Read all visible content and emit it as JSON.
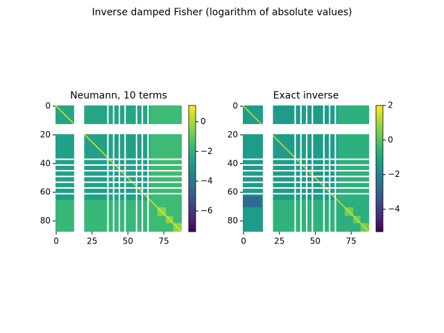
{
  "title": "Inverse damped Fisher (logarithm of absolute values)",
  "chart_data": [
    {
      "type": "heatmap",
      "title": "Neumann, 10 terms",
      "colormap": "viridis",
      "size": 88,
      "xlim": [
        -0.5,
        87.5
      ],
      "ylim": [
        87.5,
        -0.5
      ],
      "xticks": [
        0,
        25,
        50,
        75
      ],
      "yticks": [
        0,
        20,
        40,
        60,
        80
      ],
      "clim": [
        -7.4,
        1.1
      ],
      "cticks": [
        0,
        {
          "value": -2,
          "label": "−2"
        },
        {
          "value": -4,
          "label": "−4"
        },
        {
          "value": -6,
          "label": "−6"
        }
      ],
      "base": -2.6,
      "diagonal": 0.9,
      "blocks": [
        {
          "rows": [
            0,
            12
          ],
          "cols": [
            0,
            87
          ],
          "value": -2.4
        },
        {
          "rows": [
            66,
            87
          ],
          "cols": [
            0,
            87
          ],
          "value": -1.7
        },
        {
          "rows": [
            0,
            87
          ],
          "cols": [
            66,
            87
          ],
          "value": -1.6
        },
        {
          "rows": [
            71,
            76
          ],
          "cols": [
            71,
            76
          ],
          "value": -0.4
        },
        {
          "rows": [
            77,
            81
          ],
          "cols": [
            77,
            81
          ],
          "value": -0.4
        },
        {
          "rows": [
            82,
            87
          ],
          "cols": [
            82,
            87
          ],
          "value": -0.4
        }
      ],
      "nan_rows": [
        [
          13,
          19
        ],
        [
          37,
          37
        ],
        [
          41,
          41
        ],
        [
          45,
          45
        ],
        [
          49,
          49
        ],
        [
          53,
          53
        ],
        [
          57,
          57
        ],
        [
          61,
          61
        ]
      ],
      "nan_cols": [
        [
          13,
          19
        ],
        [
          36,
          36
        ],
        [
          40,
          40
        ],
        [
          44,
          44
        ],
        [
          48,
          48
        ],
        [
          56,
          56
        ],
        [
          60,
          60
        ],
        [
          64,
          64
        ]
      ]
    },
    {
      "type": "heatmap",
      "title": "Exact inverse",
      "colormap": "viridis",
      "size": 88,
      "xlim": [
        -0.5,
        87.5
      ],
      "ylim": [
        87.5,
        -0.5
      ],
      "xticks": [
        0,
        25,
        50,
        75
      ],
      "yticks": [
        0,
        20,
        40,
        60,
        80
      ],
      "clim": [
        -5.3,
        2
      ],
      "cticks": [
        2,
        0,
        {
          "value": -2,
          "label": "−2"
        },
        {
          "value": -4,
          "label": "−4"
        }
      ],
      "base": -1.3,
      "diagonal": 1.6,
      "blocks": [
        {
          "rows": [
            63,
            70
          ],
          "cols": [
            0,
            12
          ],
          "value": -2.8
        },
        {
          "rows": [
            66,
            87
          ],
          "cols": [
            14,
            87
          ],
          "value": -0.6
        },
        {
          "rows": [
            0,
            87
          ],
          "cols": [
            66,
            87
          ],
          "value": -0.7
        },
        {
          "rows": [
            71,
            76
          ],
          "cols": [
            71,
            76
          ],
          "value": 0.4
        },
        {
          "rows": [
            77,
            81
          ],
          "cols": [
            77,
            81
          ],
          "value": 0.4
        },
        {
          "rows": [
            82,
            87
          ],
          "cols": [
            82,
            87
          ],
          "value": 0.4
        }
      ],
      "nan_rows": [
        [
          13,
          19
        ],
        [
          37,
          37
        ],
        [
          41,
          41
        ],
        [
          45,
          45
        ],
        [
          49,
          49
        ],
        [
          53,
          53
        ],
        [
          57,
          57
        ],
        [
          61,
          61
        ]
      ],
      "nan_cols": [
        [
          14,
          20
        ],
        [
          36,
          36
        ],
        [
          40,
          40
        ],
        [
          44,
          44
        ],
        [
          48,
          48
        ],
        [
          56,
          56
        ],
        [
          60,
          60
        ],
        [
          64,
          64
        ]
      ]
    }
  ]
}
